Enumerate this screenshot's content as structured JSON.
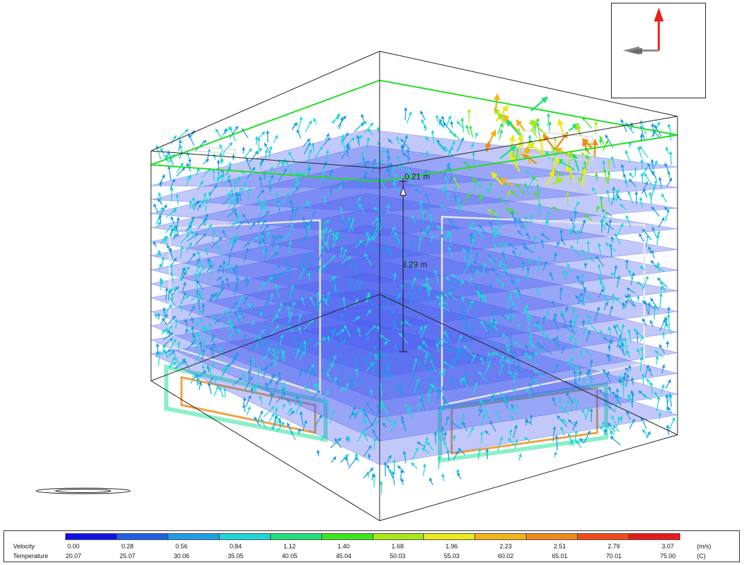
{
  "viewport": {
    "dimension_labels": [
      "0.21 m",
      "3.29 m"
    ]
  },
  "icons": {
    "axis_triad": "axis-triad-icon",
    "ground_plane": "ground-ellipse-icon"
  },
  "colors": {
    "velocity_scale": [
      "#1010e8",
      "#1f5fe6",
      "#1e9de8",
      "#1fd6d6",
      "#1fe07a",
      "#3ce81a",
      "#a6e81a",
      "#eaea1a",
      "#f2b41a",
      "#f28a1a",
      "#f24a1a",
      "#e81a1a"
    ],
    "highlight_plane": "#22dd22",
    "axis_vertical": "#e8201a",
    "axis_horizontal": "#8a8a8a"
  },
  "legend": {
    "velocity_label": "Velocity",
    "temperature_label": "Temperature",
    "velocity_values": [
      "0.00",
      "0.28",
      "0.56",
      "0.84",
      "1.12",
      "1.40",
      "1.68",
      "1.96",
      "2.23",
      "2.51",
      "2.79",
      "3.07"
    ],
    "temperature_values": [
      "20.07",
      "25.07",
      "30.06",
      "35.05",
      "40.05",
      "45.04",
      "50.03",
      "55.03",
      "60.02",
      "65.01",
      "70.01",
      "75.00"
    ],
    "velocity_unit": "(m/s)",
    "temperature_unit": "(C)"
  }
}
